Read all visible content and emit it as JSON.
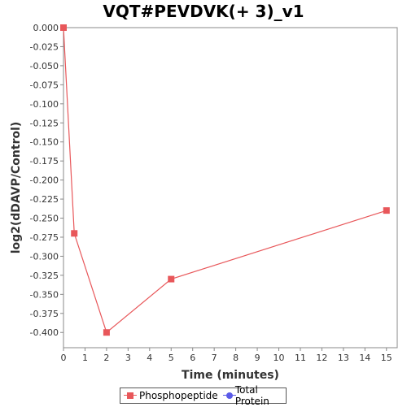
{
  "chart_data": {
    "type": "line",
    "title": "VQT#PEVDVK(+ 3)_v1",
    "xlabel": "Time (minutes)",
    "ylabel": "log2(dDAVP/Control)",
    "xlim": [
      0,
      15.5
    ],
    "ylim": [
      -0.42,
      0.0
    ],
    "x_ticks": [
      0,
      1,
      2,
      3,
      4,
      5,
      6,
      7,
      8,
      9,
      10,
      11,
      12,
      13,
      14,
      15
    ],
    "y_ticks": [
      0.0,
      -0.025,
      -0.05,
      -0.075,
      -0.1,
      -0.125,
      -0.15,
      -0.175,
      -0.2,
      -0.225,
      -0.25,
      -0.275,
      -0.3,
      -0.325,
      -0.35,
      -0.375,
      -0.4
    ],
    "y_tick_labels": [
      "0.000",
      "-0.025",
      "-0.050",
      "-0.075",
      "-0.100",
      "-0.125",
      "-0.150",
      "-0.175",
      "-0.200",
      "-0.225",
      "-0.250",
      "-0.275",
      "-0.300",
      "-0.325",
      "-0.350",
      "-0.375",
      "-0.400"
    ],
    "grid": false,
    "legend_position": "bottom",
    "series": [
      {
        "name": "Phosphopeptide",
        "color": "#e8575a",
        "marker": "square",
        "x": [
          0,
          0.5,
          2,
          5,
          15
        ],
        "y": [
          0.0,
          -0.27,
          -0.4,
          -0.33,
          -0.24
        ]
      },
      {
        "name": "Total Protein",
        "color": "#5a5ae8",
        "marker": "circle",
        "x": [],
        "y": []
      }
    ]
  }
}
